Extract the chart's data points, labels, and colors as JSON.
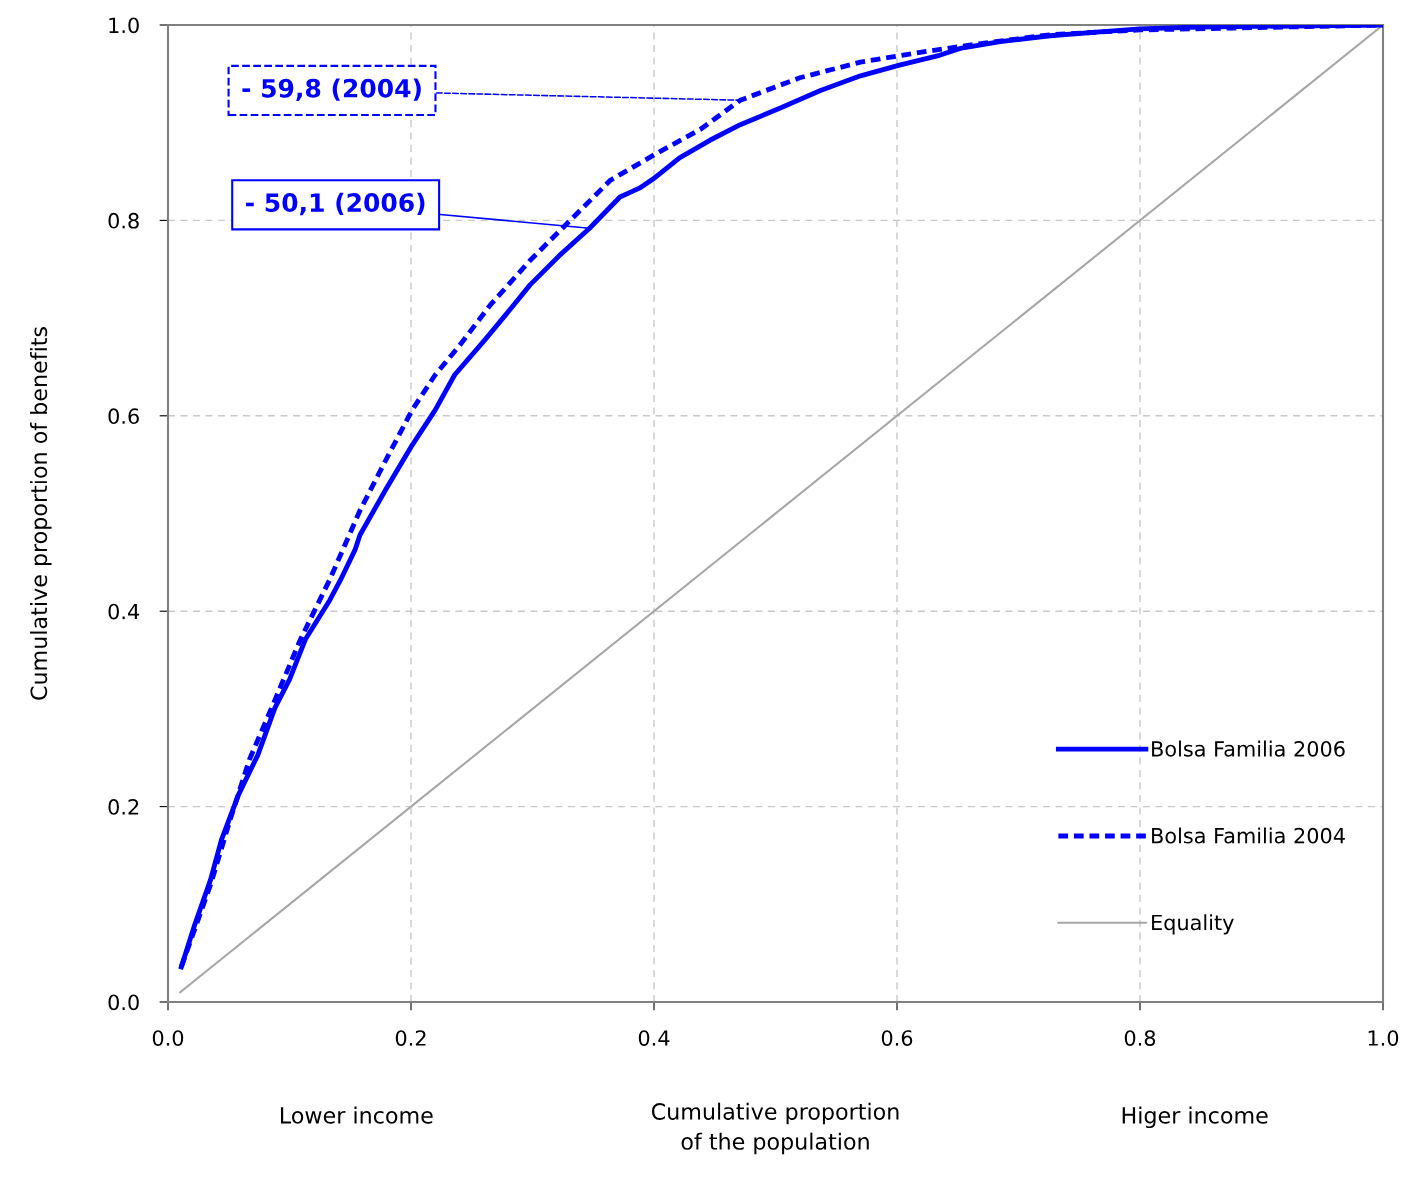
{
  "chart_data": {
    "type": "line",
    "xlabel": "Cumulative proportion\nof the population",
    "ylabel": "Cumulative proportion of benefits",
    "xlim": [
      0,
      1
    ],
    "ylim": [
      0,
      1
    ],
    "xticks": [
      {
        "value": 0,
        "label": "0.0"
      },
      {
        "value": 0.2,
        "label": "0.2"
      },
      {
        "value": 0.4,
        "label": "0.4"
      },
      {
        "value": 0.6,
        "label": "0.6"
      },
      {
        "value": 0.8,
        "label": "0.8"
      },
      {
        "value": 1,
        "label": "1.0"
      }
    ],
    "yticks": [
      {
        "value": 0,
        "label": "0.0"
      },
      {
        "value": 0.2,
        "label": "0.2"
      },
      {
        "value": 0.4,
        "label": "0.4"
      },
      {
        "value": 0.6,
        "label": "0.6"
      },
      {
        "value": 0.8,
        "label": "0.8"
      },
      {
        "value": 1,
        "label": "1.0"
      }
    ],
    "grid": true,
    "legend": "bottom right",
    "series": [
      {
        "name": "Bolsa Familia 2006",
        "color": "#0000ff",
        "line_style": "solid",
        "x": [
          0.011,
          0.022,
          0.035,
          0.044,
          0.058,
          0.074,
          0.088,
          0.1,
          0.113,
          0.133,
          0.142,
          0.154,
          0.158,
          0.179,
          0.201,
          0.22,
          0.236,
          0.261,
          0.281,
          0.298,
          0.323,
          0.347,
          0.372,
          0.388,
          0.4,
          0.421,
          0.446,
          0.471,
          0.504,
          0.537,
          0.57,
          0.602,
          0.635,
          0.652,
          0.685,
          0.726,
          0.767,
          0.8,
          0.849,
          1.0
        ],
        "values": [
          0.036,
          0.079,
          0.125,
          0.166,
          0.212,
          0.253,
          0.301,
          0.33,
          0.371,
          0.411,
          0.432,
          0.463,
          0.478,
          0.524,
          0.57,
          0.606,
          0.642,
          0.678,
          0.708,
          0.734,
          0.765,
          0.792,
          0.824,
          0.833,
          0.843,
          0.864,
          0.882,
          0.898,
          0.915,
          0.933,
          0.948,
          0.959,
          0.969,
          0.976,
          0.983,
          0.989,
          0.993,
          0.996,
          0.998,
          1.0
        ]
      },
      {
        "name": "Bolsa Familia 2004",
        "color": "#0000ff",
        "line_style": "dashed",
        "x": [
          0.011,
          0.035,
          0.051,
          0.067,
          0.088,
          0.109,
          0.133,
          0.158,
          0.179,
          0.201,
          0.22,
          0.24,
          0.265,
          0.298,
          0.331,
          0.364,
          0.4,
          0.438,
          0.471,
          0.52,
          0.57,
          0.619,
          0.669,
          0.726,
          0.8,
          1.0
        ],
        "values": [
          0.036,
          0.12,
          0.186,
          0.248,
          0.309,
          0.371,
          0.432,
          0.503,
          0.554,
          0.606,
          0.642,
          0.672,
          0.713,
          0.759,
          0.8,
          0.841,
          0.867,
          0.893,
          0.923,
          0.946,
          0.962,
          0.972,
          0.981,
          0.99,
          0.995,
          1.0
        ]
      },
      {
        "name": "Equality",
        "color": "#a6a6a6",
        "line_style": "solid",
        "x": [
          0.01,
          1.0
        ],
        "values": [
          0.01,
          1.0
        ]
      }
    ],
    "annotations": [
      {
        "text": "- 59,8 (2004)",
        "x": 0.471,
        "y": 0.923
      },
      {
        "text": "- 50,1 (2006)",
        "x": 0.347,
        "y": 0.792
      },
      "Lower income",
      "Higer income"
    ]
  }
}
